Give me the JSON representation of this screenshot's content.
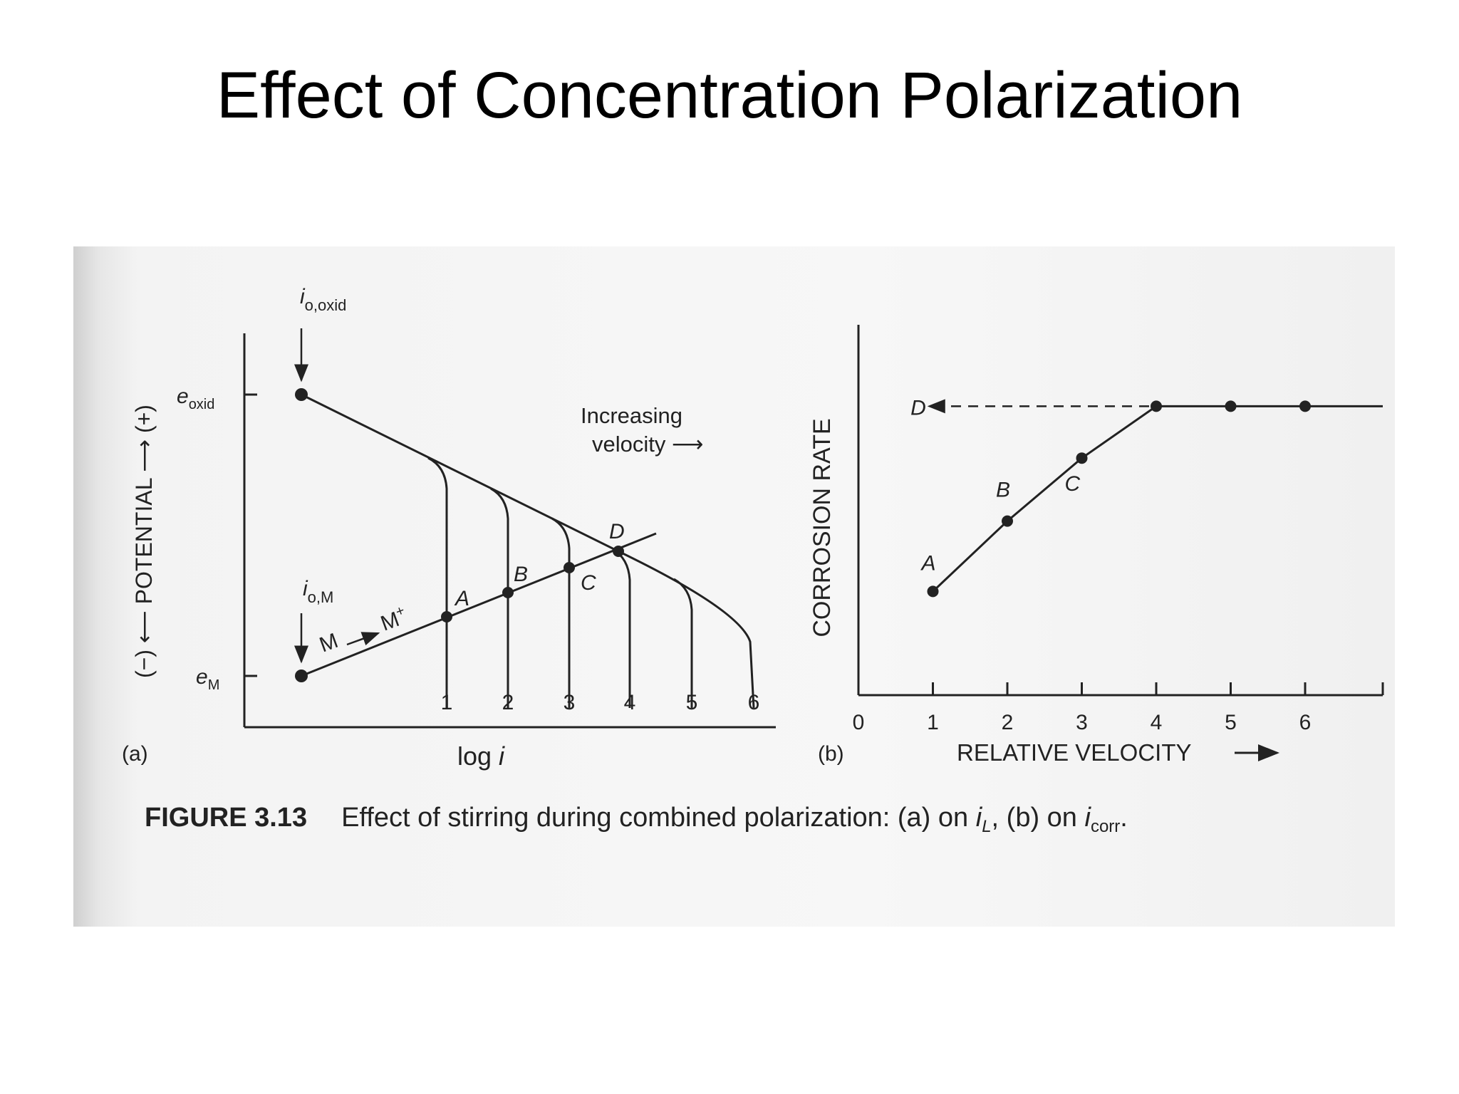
{
  "slide": {
    "title": "Effect of Concentration Polarization"
  },
  "figure": {
    "caption_number": "FIGURE 3.13",
    "caption_text_1": "Effect of stirring during combined polarization: (a) on ",
    "caption_iL_base": "i",
    "caption_iL_sub": "L",
    "caption_text_2": ", (b) on ",
    "caption_icorr_base": "i",
    "caption_icorr_sub": "corr",
    "caption_text_3": "."
  },
  "panel_a": {
    "tag": "(a)",
    "x_label_prefix": "log ",
    "x_label_var": "i",
    "y_label": "(−) ⟵ POTENTIAL ⟶ (+)",
    "e_oxid_base": "e",
    "e_oxid_sub": "oxid",
    "e_m_base": "e",
    "e_m_sub": "M",
    "io_oxid_base": "i",
    "io_oxid_sub": "o,oxid",
    "io_m_base": "i",
    "io_m_sub": "o,M",
    "reaction_from": "M",
    "reaction_to": "M",
    "reaction_sup": "+",
    "velocity_line1": "Increasing",
    "velocity_line2": "velocity ⟶",
    "curve_numbers": [
      "1",
      "2",
      "3",
      "4",
      "5",
      "6"
    ],
    "intersection_labels": [
      "A",
      "B",
      "C",
      "D"
    ]
  },
  "panel_b": {
    "tag": "(b)",
    "x_label": "RELATIVE VELOCITY",
    "y_label": "CORROSION RATE",
    "ticks": [
      "0",
      "1",
      "2",
      "3",
      "4",
      "5",
      "6"
    ],
    "point_labels": [
      "A",
      "B",
      "C",
      "D"
    ]
  },
  "chart_data": {
    "type": "line",
    "xlabel": "RELATIVE VELOCITY",
    "ylabel": "CORROSION RATE",
    "x": [
      1,
      2,
      3,
      4,
      5,
      6
    ],
    "series": [
      {
        "values": [
          0.28,
          0.47,
          0.64,
          0.78,
          0.78,
          0.78
        ]
      }
    ],
    "point_labels": [
      "A",
      "B",
      "C",
      "",
      "",
      ""
    ],
    "xlim": [
      0,
      6.9
    ]
  }
}
